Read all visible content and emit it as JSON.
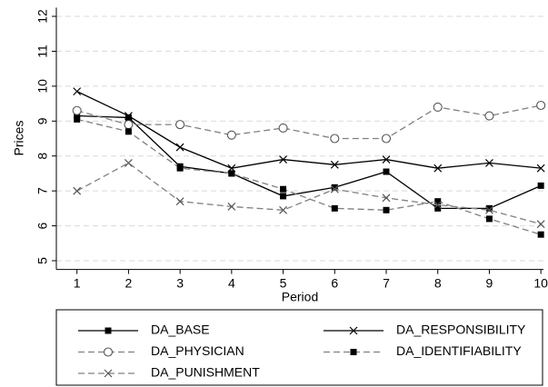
{
  "chart_data": {
    "type": "line",
    "x_label": "Period",
    "y_label": "Prices",
    "x": [
      1,
      2,
      3,
      4,
      5,
      6,
      7,
      8,
      9,
      10
    ],
    "xlim": [
      0.6,
      10.05
    ],
    "xticks": [
      1,
      2,
      3,
      4,
      5,
      6,
      7,
      8,
      9,
      10
    ],
    "ylim": [
      4.75,
      12.25
    ],
    "yticks": [
      5,
      6,
      7,
      8,
      9,
      10,
      11,
      12
    ],
    "grid": true,
    "legend": "bottom",
    "series": [
      {
        "name": "DA_BASE",
        "color": "#000000",
        "line_style": "solid",
        "marker": "square",
        "values": [
          9.15,
          9.1,
          7.7,
          7.5,
          6.85,
          7.1,
          7.55,
          6.5,
          6.5,
          7.15
        ]
      },
      {
        "name": "DA_RESPONSIBILITY",
        "color": "#000000",
        "line_style": "solid",
        "marker": "x",
        "values": [
          9.85,
          9.15,
          8.25,
          7.65,
          7.9,
          7.75,
          7.9,
          7.65,
          7.8,
          7.65
        ]
      },
      {
        "name": "DA_PHYSICIAN",
        "color": "#808080",
        "line_style": "dashed",
        "marker": "circle",
        "values": [
          9.3,
          8.9,
          8.9,
          8.6,
          8.8,
          8.5,
          8.5,
          9.4,
          9.15,
          9.45
        ]
      },
      {
        "name": "DA_IDENTIFIABILITY",
        "color": "#808080",
        "line_style": "dashed",
        "marker": "square",
        "values": [
          9.05,
          8.7,
          7.65,
          7.5,
          7.05,
          6.5,
          6.45,
          6.7,
          6.2,
          5.75
        ]
      },
      {
        "name": "DA_PUNISHMENT",
        "color": "#808080",
        "line_style": "dashed",
        "marker": "x",
        "values": [
          7.0,
          7.8,
          6.7,
          6.55,
          6.45,
          7.05,
          6.8,
          6.6,
          6.45,
          6.05
        ]
      }
    ]
  }
}
